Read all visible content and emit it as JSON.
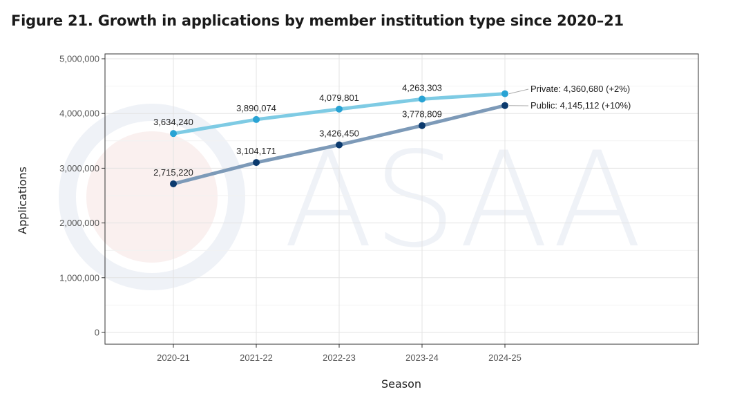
{
  "figure_title": "Figure 21. Growth in applications by member institution type since 2020–21",
  "watermark": {
    "text": "ASAA"
  },
  "chart_data": {
    "type": "line",
    "xlabel": "Season",
    "ylabel": "Applications",
    "categories": [
      "2020-21",
      "2021-22",
      "2022-23",
      "2023-24",
      "2024-25"
    ],
    "ylim": [
      0,
      5000000
    ],
    "yticks": [
      0,
      1000000,
      2000000,
      3000000,
      4000000,
      5000000
    ],
    "ytick_labels": [
      "0",
      "1,000,000",
      "2,000,000",
      "3,000,000",
      "4,000,000",
      "5,000,000"
    ],
    "grid": true,
    "series": [
      {
        "name": "Private",
        "values": [
          3634240,
          3890074,
          4079801,
          4263303,
          4360680
        ],
        "point_labels": [
          "3,634,240",
          "3,890,074",
          "4,079,801",
          "4,263,303"
        ],
        "end_label": "Private: 4,360,680 (+2%)",
        "line_color": "#7ecbe4",
        "point_color": "#29a3d4"
      },
      {
        "name": "Public",
        "values": [
          2715220,
          3104171,
          3426450,
          3778809,
          4145112
        ],
        "point_labels": [
          "2,715,220",
          "3,104,171",
          "3,426,450",
          "3,778,809"
        ],
        "end_label": "Public: 4,145,112 (+10%)",
        "line_color": "#7d9ab8",
        "point_color": "#0b3a6e"
      }
    ]
  }
}
